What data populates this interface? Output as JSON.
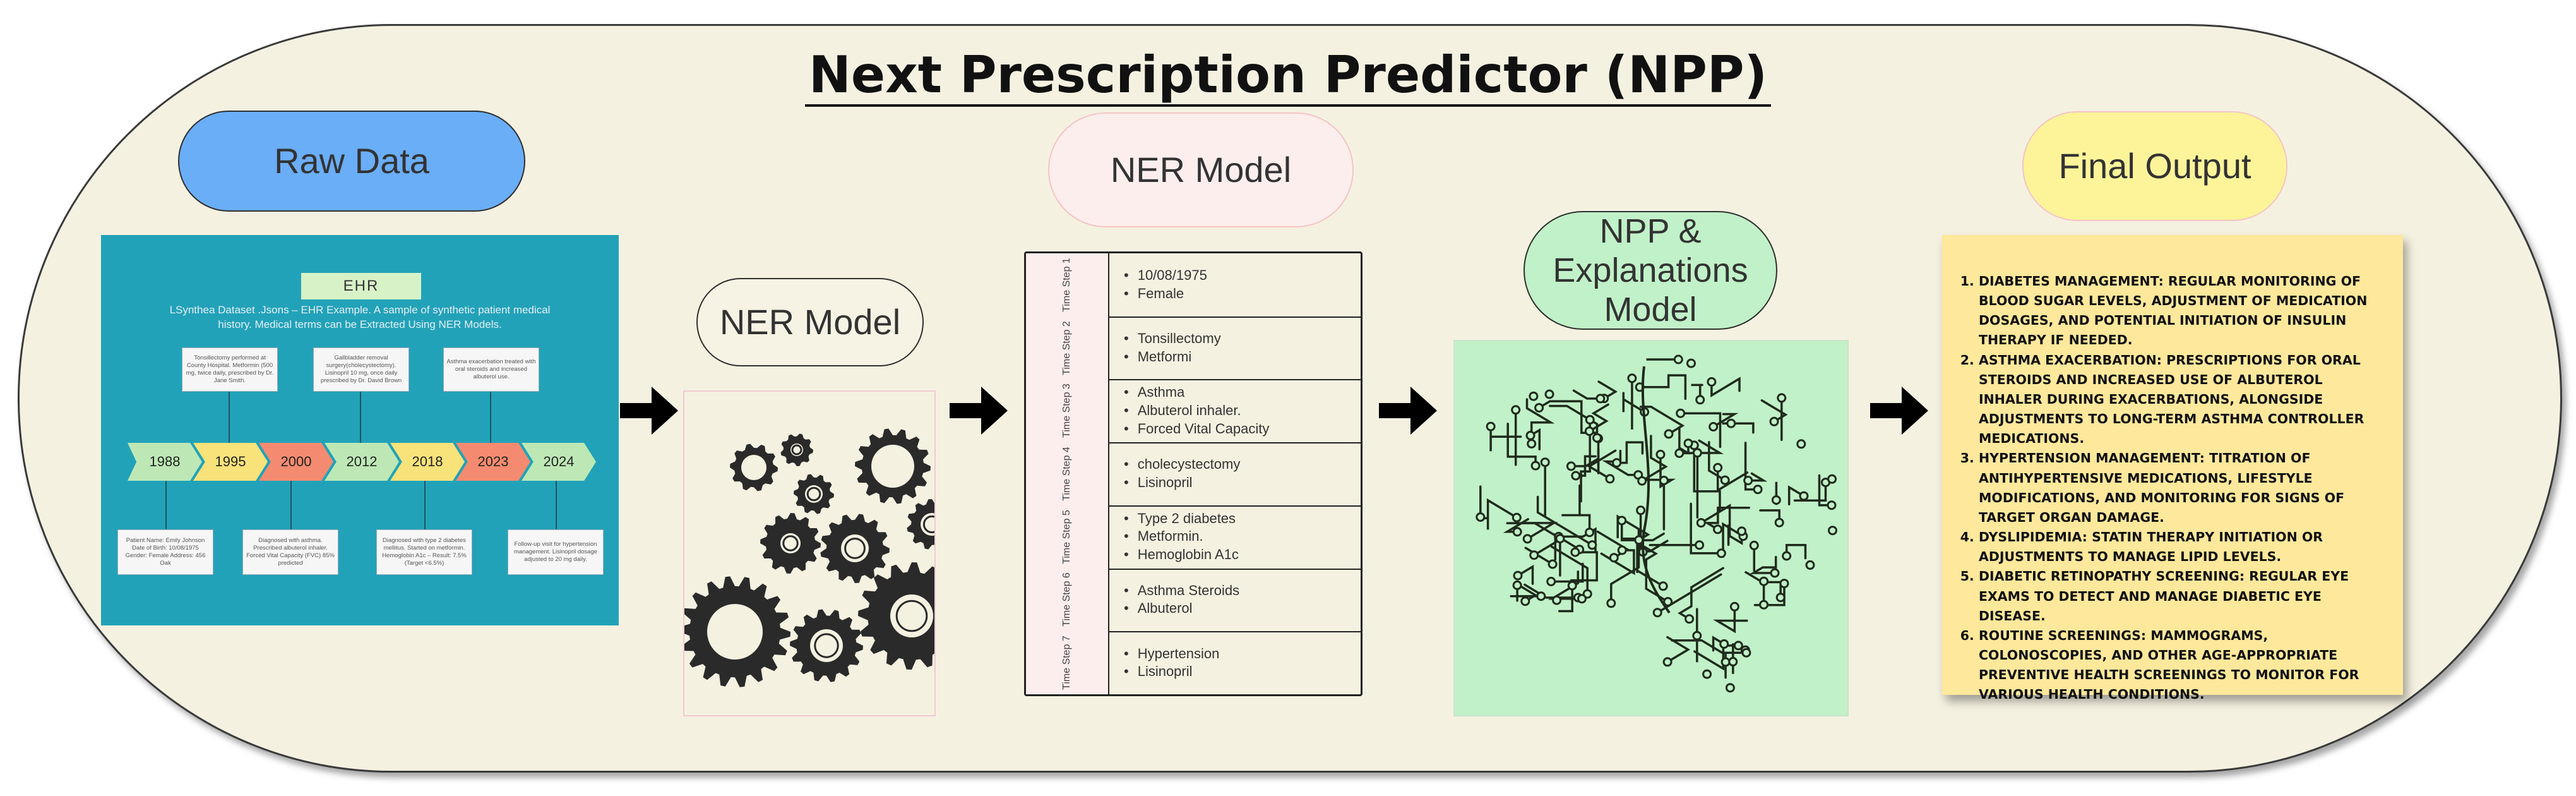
{
  "title": "Next Prescription Predictor (NPP)",
  "stages": {
    "raw_data": "Raw Data",
    "ner_model_left": "NER Model",
    "ner_model_top": "NER Model",
    "npp_model": "NPP & Explanations Model",
    "final_output": "Final Output"
  },
  "ehr": {
    "title": "EHR",
    "subtitle": "LSynthea Dataset .Jsons – EHR Example. A sample of synthetic patient medical history. Medical terms can be Extracted Using NER Models.",
    "years": [
      "1988",
      "1995",
      "2000",
      "2012",
      "2018",
      "2023",
      "2024"
    ],
    "top_notes": [
      "Tonsillectomy performed at County Hospital. Metformin (500 mg, twice daily, prescribed by Dr. Jane Smith.",
      "Gallbladder removal surgery(cholecystectomy). Lisinopril 10 mg, once daily prescribed by Dr. David Brown",
      "Asthma exacerbation treated with oral steroids and increased albuterol use."
    ],
    "bottom_notes": [
      "Patient Name: Emily Johnson Date of Birth: 10/08/1975 Gender: Female Address: 456 Oak",
      "Diagnosed with asthma. Prescribed albuterol inhaler. Forced Vital Capacity (FVC) 85% predicted",
      "Diagnosed with type 2 diabetes mellitus. Started on metformin. Hemoglobin A1c – Result: 7.5% (Target <6.5%)",
      "Follow-up visit for hypertension management. Lisinopril dosage adjusted to 20 mg daily."
    ]
  },
  "timeline_table": [
    {
      "step": "Time Step 1",
      "items": [
        "10/08/1975",
        "Female"
      ]
    },
    {
      "step": "Time Step 2",
      "items": [
        "Tonsillectomy",
        "Metformi"
      ]
    },
    {
      "step": "Time Step 3",
      "items": [
        "Asthma",
        "Albuterol inhaler.",
        "Forced Vital Capacity"
      ]
    },
    {
      "step": "Time Step 4",
      "items": [
        "cholecystectomy",
        "Lisinopril"
      ]
    },
    {
      "step": "Time Step 5",
      "items": [
        "Type 2 diabetes",
        "Metformin.",
        "Hemoglobin A1c"
      ]
    },
    {
      "step": "Time Step 6",
      "items": [
        "Asthma Steroids",
        "Albuterol"
      ]
    },
    {
      "step": "Time Step 7",
      "items": [
        "Hypertension",
        "Lisinopril"
      ]
    }
  ],
  "final_output_items": [
    "Diabetes Management: Regular monitoring of blood sugar levels, adjustment of medication dosages, and potential initiation of insulin therapy if needed.",
    "Asthma Exacerbation: Prescriptions for oral steroids and increased use of albuterol inhaler during exacerbations, alongside adjustments to long-term asthma controller medications.",
    "Hypertension Management: Titration of antihypertensive medications, lifestyle modifications, and monitoring for signs of target organ damage.",
    "Dyslipidemia: Statin therapy initiation or adjustments to manage lipid levels.",
    "Diabetic Retinopathy Screening: Regular eye exams to detect and manage diabetic eye disease.",
    "Routine Screenings: Mammograms, colonoscopies, and other age-appropriate preventive health screenings to monitor for various health conditions."
  ],
  "colors": {
    "background_frame": "#f5f1e1",
    "raw_data_pill": "#6aaef8",
    "ehr_panel": "#22a2b8",
    "npp_pill": "#c1f1c8",
    "final_pill": "#fdf49a",
    "sticky_note": "#fde89b",
    "year_green": "#bde8b6",
    "year_yellow": "#f8e27a",
    "year_salmon": "#f48b70"
  },
  "icons": {
    "gears": "gears-illustration",
    "brain": "circuit-brain-illustration",
    "arrows": "right-arrow-icon"
  }
}
